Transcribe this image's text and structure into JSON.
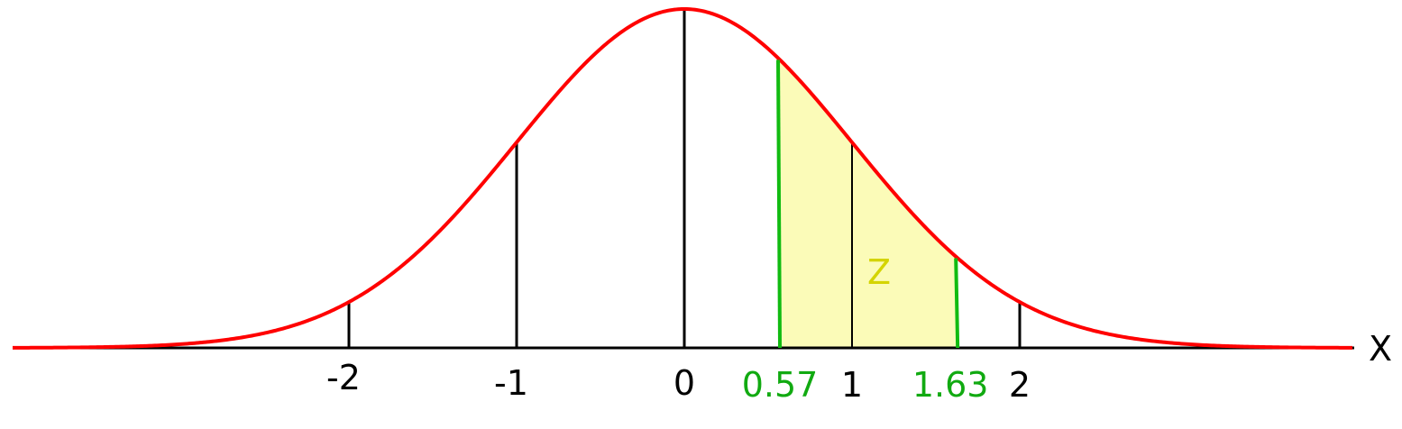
{
  "chart_data": {
    "type": "area",
    "curve": "standard normal density",
    "xlabel": "X",
    "xlim": [
      -4,
      4
    ],
    "ticks": [
      {
        "value": -2,
        "label": "-2"
      },
      {
        "value": -1,
        "label": "-1"
      },
      {
        "value": 0,
        "label": "0"
      },
      {
        "value": 1,
        "label": "1"
      },
      {
        "value": 2,
        "label": "2"
      }
    ],
    "shaded_region": {
      "from": 0.57,
      "to": 1.63,
      "from_label": "0.57",
      "to_label": "1.63",
      "area_label": "Z"
    }
  },
  "colors": {
    "curve": "#ff0000",
    "axis": "#000000",
    "bounds": "#11bb11",
    "shade": "#fbfbb8",
    "bound_labels": "#11aa11",
    "area_label": "#d4d400"
  }
}
